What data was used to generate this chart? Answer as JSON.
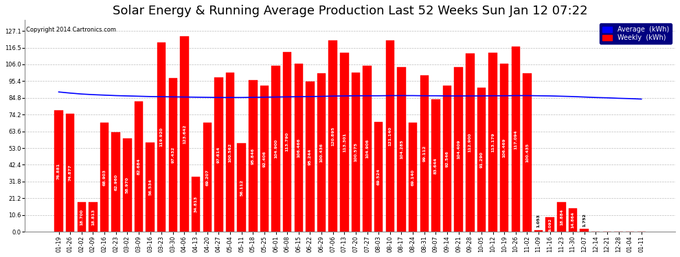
{
  "title": "Solar Energy & Running Average Production Last 52 Weeks Sun Jan 12 07:22",
  "copyright": "Copyright 2014 Cartronics.com",
  "legend_average": "Average  (kWh)",
  "legend_weekly": "Weekly  (kWh)",
  "bar_color": "#FF0000",
  "avg_line_color": "#0000FF",
  "background_color": "#FFFFFF",
  "plot_bg_color": "#FFFFFF",
  "grid_color": "#BBBBBB",
  "yticks": [
    0.0,
    10.6,
    21.2,
    31.8,
    42.4,
    53.0,
    63.6,
    74.2,
    84.8,
    95.4,
    106.0,
    116.5,
    127.1
  ],
  "categories": [
    "01-19",
    "01-26",
    "02-02",
    "02-09",
    "02-16",
    "02-23",
    "03-02",
    "03-09",
    "03-16",
    "03-23",
    "03-30",
    "04-06",
    "04-13",
    "04-20",
    "04-27",
    "05-04",
    "05-11",
    "05-18",
    "05-25",
    "06-01",
    "06-08",
    "06-15",
    "06-22",
    "06-29",
    "07-06",
    "07-13",
    "07-20",
    "07-27",
    "08-03",
    "08-10",
    "08-17",
    "08-24",
    "08-31",
    "09-07",
    "09-14",
    "09-21",
    "09-28",
    "10-05",
    "10-12",
    "10-19",
    "10-26",
    "11-02",
    "11-09",
    "11-16",
    "11-23",
    "11-30",
    "12-07",
    "12-14",
    "12-21",
    "12-28",
    "01-04",
    "01-11"
  ],
  "values": [
    76.881,
    74.877,
    18.7,
    18.813,
    68.903,
    62.96,
    58.97,
    82.684,
    56.534,
    119.92,
    97.432,
    123.642,
    34.813,
    69.207,
    97.614,
    100.562,
    56.112,
    95.846,
    92.406,
    104.9,
    113.79,
    106.466,
    95.244,
    100.436,
    120.895,
    113.301,
    100.575,
    104.906,
    69.524,
    121.14,
    104.285,
    69.14,
    99.112,
    83.644,
    92.546,
    104.409,
    112.9,
    91.29,
    113.179,
    106.469,
    117.094,
    100.435,
    1.053,
    9.092,
    18.884,
    14.864,
    1.752,
    0.0,
    0.0,
    0.0,
    0.0,
    0.0
  ],
  "avg_values": [
    88.5,
    87.8,
    87.2,
    86.8,
    86.5,
    86.2,
    86.0,
    85.8,
    85.6,
    85.5,
    85.4,
    85.3,
    85.2,
    85.1,
    85.0,
    85.0,
    85.0,
    85.1,
    85.2,
    85.3,
    85.4,
    85.5,
    85.6,
    85.7,
    85.9,
    86.0,
    86.1,
    86.1,
    86.1,
    86.2,
    86.2,
    86.2,
    86.1,
    86.1,
    86.0,
    86.0,
    86.0,
    86.0,
    86.1,
    86.1,
    86.2,
    86.2,
    86.1,
    86.0,
    85.8,
    85.6,
    85.3,
    85.0,
    84.8,
    84.5,
    84.3,
    84.0
  ],
  "ylim": [
    0,
    134
  ],
  "title_fontsize": 13,
  "tick_fontsize": 6.0,
  "bar_width": 0.75
}
